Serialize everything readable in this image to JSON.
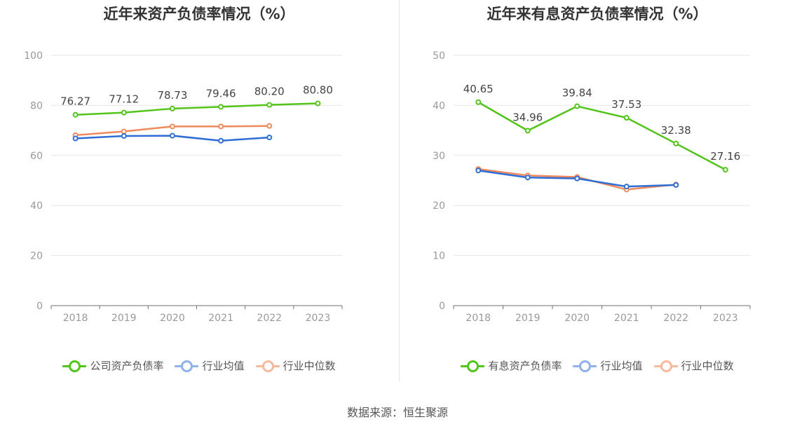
{
  "source": "数据来源：恒生聚源",
  "chart_data": [
    {
      "type": "line",
      "title": "近年来资产负债率情况（%）",
      "x": [
        "2018",
        "2019",
        "2020",
        "2021",
        "2022",
        "2023"
      ],
      "ylim": [
        0,
        100
      ],
      "yticks": [
        "0",
        "20",
        "40",
        "60",
        "80",
        "100"
      ],
      "grid": true,
      "legend": "bottom",
      "series": [
        {
          "name": "公司资产负债率",
          "color": "#52c41a",
          "values": [
            76.27,
            77.12,
            78.73,
            79.46,
            80.2,
            80.8
          ],
          "labels": [
            "76.27",
            "77.12",
            "78.73",
            "79.46",
            "80.20",
            "80.80"
          ]
        },
        {
          "name": "行业均值",
          "color": "#2d6ed6",
          "legend_color": "#8fb1ee",
          "values": [
            66.8,
            67.8,
            67.9,
            65.9,
            67.2,
            null
          ]
        },
        {
          "name": "行业中位数",
          "color": "#f08a5d",
          "legend_color": "#f7b99c",
          "values": [
            68.1,
            69.6,
            71.6,
            71.6,
            71.8,
            null
          ]
        }
      ]
    },
    {
      "type": "line",
      "title": "近年来有息资产负债率情况（%）",
      "x": [
        "2018",
        "2019",
        "2020",
        "2021",
        "2022",
        "2023"
      ],
      "ylim": [
        0,
        50
      ],
      "yticks": [
        "0",
        "10",
        "20",
        "30",
        "40",
        "50"
      ],
      "grid": true,
      "legend": "bottom",
      "series": [
        {
          "name": "有息资产负债率",
          "color": "#52c41a",
          "values": [
            40.65,
            34.96,
            39.84,
            37.53,
            32.38,
            27.16
          ],
          "labels": [
            "40.65",
            "34.96",
            "39.84",
            "37.53",
            "32.38",
            "27.16"
          ]
        },
        {
          "name": "行业均值",
          "color": "#2d6ed6",
          "legend_color": "#8fb1ee",
          "values": [
            27.0,
            25.6,
            25.4,
            23.8,
            24.1,
            null
          ]
        },
        {
          "name": "行业中位数",
          "color": "#f08a5d",
          "legend_color": "#f7b99c",
          "values": [
            27.3,
            26.0,
            25.7,
            23.2,
            24.2,
            null
          ]
        }
      ]
    }
  ]
}
